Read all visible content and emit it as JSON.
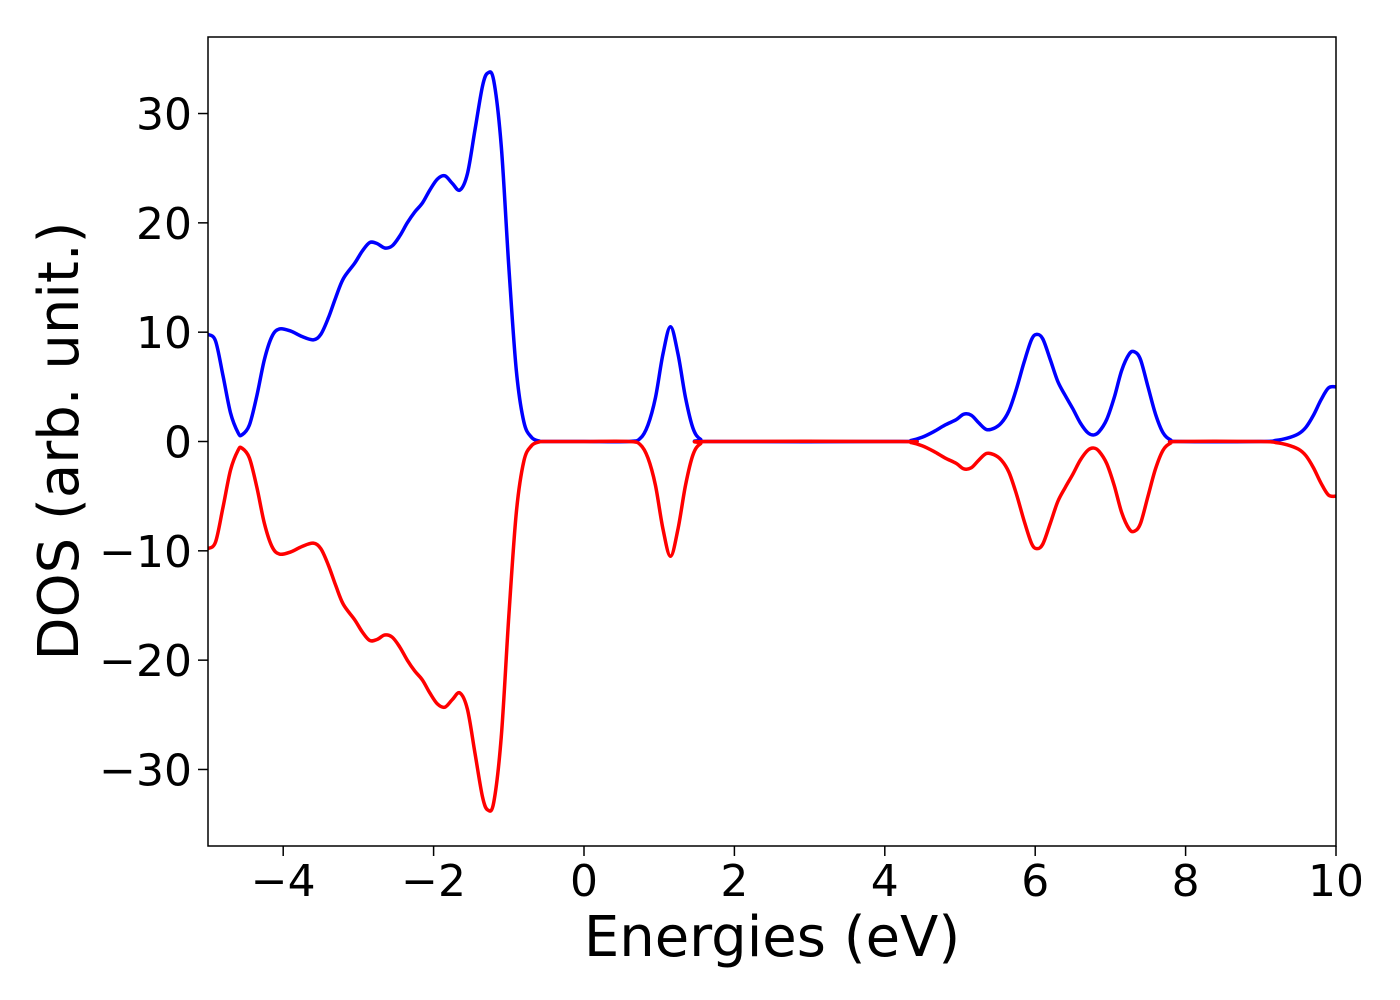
{
  "chart_data": {
    "type": "line",
    "xlabel": "Energies (eV)",
    "ylabel": "DOS (arb. unit.)",
    "xlim": [
      -5,
      10
    ],
    "ylim": [
      -37,
      37
    ],
    "x_ticks": [
      -4,
      -2,
      0,
      2,
      4,
      6,
      8,
      10
    ],
    "x_tick_labels": [
      "−4",
      "−2",
      "0",
      "2",
      "4",
      "6",
      "8",
      "10"
    ],
    "y_ticks": [
      -30,
      -20,
      -10,
      0,
      10,
      20,
      30
    ],
    "y_tick_labels": [
      "−30",
      "−20",
      "−10",
      "0",
      "10",
      "20",
      "30"
    ],
    "grid": false,
    "series": [
      {
        "color": "#0000ff",
        "points": [
          [
            -5.0,
            9.8
          ],
          [
            -4.9,
            9.2
          ],
          [
            -4.8,
            6.0
          ],
          [
            -4.7,
            2.6
          ],
          [
            -4.6,
            0.8
          ],
          [
            -4.55,
            0.6
          ],
          [
            -4.45,
            1.5
          ],
          [
            -4.35,
            4.2
          ],
          [
            -4.25,
            7.5
          ],
          [
            -4.15,
            9.6
          ],
          [
            -4.05,
            10.3
          ],
          [
            -3.9,
            10.1
          ],
          [
            -3.75,
            9.6
          ],
          [
            -3.6,
            9.3
          ],
          [
            -3.5,
            9.8
          ],
          [
            -3.4,
            11.3
          ],
          [
            -3.3,
            13.2
          ],
          [
            -3.2,
            14.9
          ],
          [
            -3.05,
            16.3
          ],
          [
            -2.95,
            17.4
          ],
          [
            -2.85,
            18.2
          ],
          [
            -2.75,
            18.1
          ],
          [
            -2.65,
            17.7
          ],
          [
            -2.55,
            17.9
          ],
          [
            -2.45,
            18.8
          ],
          [
            -2.35,
            20.0
          ],
          [
            -2.25,
            21.0
          ],
          [
            -2.15,
            21.8
          ],
          [
            -2.05,
            23.0
          ],
          [
            -1.95,
            24.0
          ],
          [
            -1.85,
            24.3
          ],
          [
            -1.75,
            23.6
          ],
          [
            -1.65,
            23.0
          ],
          [
            -1.55,
            24.5
          ],
          [
            -1.45,
            28.5
          ],
          [
            -1.35,
            32.5
          ],
          [
            -1.28,
            33.7
          ],
          [
            -1.2,
            33.0
          ],
          [
            -1.1,
            27.0
          ],
          [
            -1.0,
            16.0
          ],
          [
            -0.9,
            6.5
          ],
          [
            -0.8,
            1.8
          ],
          [
            -0.7,
            0.4
          ],
          [
            -0.6,
            0.05
          ],
          [
            -0.5,
            0.0
          ],
          [
            0.0,
            0.0
          ],
          [
            0.6,
            0.0
          ],
          [
            0.75,
            0.3
          ],
          [
            0.85,
            1.5
          ],
          [
            0.95,
            4.0
          ],
          [
            1.05,
            8.0
          ],
          [
            1.15,
            10.5
          ],
          [
            1.25,
            8.0
          ],
          [
            1.35,
            4.0
          ],
          [
            1.45,
            1.2
          ],
          [
            1.55,
            0.2
          ],
          [
            1.7,
            0.0
          ],
          [
            4.2,
            0.0
          ],
          [
            4.35,
            0.1
          ],
          [
            4.5,
            0.4
          ],
          [
            4.65,
            0.9
          ],
          [
            4.8,
            1.5
          ],
          [
            4.95,
            2.0
          ],
          [
            5.05,
            2.5
          ],
          [
            5.15,
            2.4
          ],
          [
            5.25,
            1.7
          ],
          [
            5.35,
            1.1
          ],
          [
            5.45,
            1.2
          ],
          [
            5.55,
            1.7
          ],
          [
            5.65,
            2.8
          ],
          [
            5.75,
            4.8
          ],
          [
            5.85,
            7.2
          ],
          [
            5.95,
            9.3
          ],
          [
            6.02,
            9.8
          ],
          [
            6.1,
            9.4
          ],
          [
            6.2,
            7.5
          ],
          [
            6.3,
            5.5
          ],
          [
            6.4,
            4.2
          ],
          [
            6.5,
            3.0
          ],
          [
            6.6,
            1.7
          ],
          [
            6.7,
            0.8
          ],
          [
            6.78,
            0.6
          ],
          [
            6.85,
            0.9
          ],
          [
            6.95,
            2.0
          ],
          [
            7.05,
            4.0
          ],
          [
            7.15,
            6.5
          ],
          [
            7.25,
            8.0
          ],
          [
            7.32,
            8.2
          ],
          [
            7.4,
            7.5
          ],
          [
            7.5,
            5.0
          ],
          [
            7.6,
            2.5
          ],
          [
            7.7,
            0.8
          ],
          [
            7.8,
            0.15
          ],
          [
            7.9,
            0.0
          ],
          [
            9.0,
            0.0
          ],
          [
            9.2,
            0.1
          ],
          [
            9.35,
            0.3
          ],
          [
            9.5,
            0.7
          ],
          [
            9.6,
            1.3
          ],
          [
            9.7,
            2.4
          ],
          [
            9.8,
            3.8
          ],
          [
            9.9,
            4.9
          ],
          [
            10.0,
            5.0
          ]
        ]
      },
      {
        "color": "#ff0000",
        "points": [
          [
            -5.0,
            -9.8
          ],
          [
            -4.9,
            -9.2
          ],
          [
            -4.8,
            -6.0
          ],
          [
            -4.7,
            -2.6
          ],
          [
            -4.6,
            -0.8
          ],
          [
            -4.55,
            -0.6
          ],
          [
            -4.45,
            -1.5
          ],
          [
            -4.35,
            -4.2
          ],
          [
            -4.25,
            -7.5
          ],
          [
            -4.15,
            -9.6
          ],
          [
            -4.05,
            -10.3
          ],
          [
            -3.9,
            -10.1
          ],
          [
            -3.75,
            -9.6
          ],
          [
            -3.6,
            -9.3
          ],
          [
            -3.5,
            -9.8
          ],
          [
            -3.4,
            -11.3
          ],
          [
            -3.3,
            -13.2
          ],
          [
            -3.2,
            -14.9
          ],
          [
            -3.05,
            -16.3
          ],
          [
            -2.95,
            -17.4
          ],
          [
            -2.85,
            -18.2
          ],
          [
            -2.75,
            -18.1
          ],
          [
            -2.65,
            -17.7
          ],
          [
            -2.55,
            -17.9
          ],
          [
            -2.45,
            -18.8
          ],
          [
            -2.35,
            -20.0
          ],
          [
            -2.25,
            -21.0
          ],
          [
            -2.15,
            -21.8
          ],
          [
            -2.05,
            -23.0
          ],
          [
            -1.95,
            -24.0
          ],
          [
            -1.85,
            -24.3
          ],
          [
            -1.75,
            -23.6
          ],
          [
            -1.65,
            -23.0
          ],
          [
            -1.55,
            -24.5
          ],
          [
            -1.45,
            -28.5
          ],
          [
            -1.35,
            -32.5
          ],
          [
            -1.28,
            -33.7
          ],
          [
            -1.2,
            -33.0
          ],
          [
            -1.1,
            -27.0
          ],
          [
            -1.0,
            -16.0
          ],
          [
            -0.9,
            -6.5
          ],
          [
            -0.8,
            -1.8
          ],
          [
            -0.7,
            -0.4
          ],
          [
            -0.6,
            -0.05
          ],
          [
            -0.5,
            0.0
          ],
          [
            0.0,
            0.0
          ],
          [
            0.6,
            0.0
          ],
          [
            0.75,
            -0.3
          ],
          [
            0.85,
            -1.5
          ],
          [
            0.95,
            -4.0
          ],
          [
            1.05,
            -8.0
          ],
          [
            1.15,
            -10.5
          ],
          [
            1.25,
            -8.0
          ],
          [
            1.35,
            -4.0
          ],
          [
            1.45,
            -1.2
          ],
          [
            1.55,
            -0.2
          ],
          [
            1.7,
            0.0
          ],
          [
            4.2,
            0.0
          ],
          [
            4.35,
            -0.1
          ],
          [
            4.5,
            -0.4
          ],
          [
            4.65,
            -0.9
          ],
          [
            4.8,
            -1.5
          ],
          [
            4.95,
            -2.0
          ],
          [
            5.05,
            -2.5
          ],
          [
            5.15,
            -2.4
          ],
          [
            5.25,
            -1.7
          ],
          [
            5.35,
            -1.1
          ],
          [
            5.45,
            -1.2
          ],
          [
            5.55,
            -1.7
          ],
          [
            5.65,
            -2.8
          ],
          [
            5.75,
            -4.8
          ],
          [
            5.85,
            -7.2
          ],
          [
            5.95,
            -9.3
          ],
          [
            6.02,
            -9.8
          ],
          [
            6.1,
            -9.4
          ],
          [
            6.2,
            -7.5
          ],
          [
            6.3,
            -5.5
          ],
          [
            6.4,
            -4.2
          ],
          [
            6.5,
            -3.0
          ],
          [
            6.6,
            -1.7
          ],
          [
            6.7,
            -0.8
          ],
          [
            6.78,
            -0.6
          ],
          [
            6.85,
            -0.9
          ],
          [
            6.95,
            -2.0
          ],
          [
            7.05,
            -4.0
          ],
          [
            7.15,
            -6.5
          ],
          [
            7.25,
            -8.0
          ],
          [
            7.32,
            -8.2
          ],
          [
            7.4,
            -7.5
          ],
          [
            7.5,
            -5.0
          ],
          [
            7.6,
            -2.5
          ],
          [
            7.7,
            -0.8
          ],
          [
            7.8,
            -0.15
          ],
          [
            7.9,
            0.0
          ],
          [
            9.0,
            0.0
          ],
          [
            9.2,
            -0.1
          ],
          [
            9.35,
            -0.3
          ],
          [
            9.5,
            -0.7
          ],
          [
            9.6,
            -1.3
          ],
          [
            9.7,
            -2.4
          ],
          [
            9.8,
            -3.8
          ],
          [
            9.9,
            -4.9
          ],
          [
            10.0,
            -5.0
          ]
        ]
      }
    ]
  }
}
